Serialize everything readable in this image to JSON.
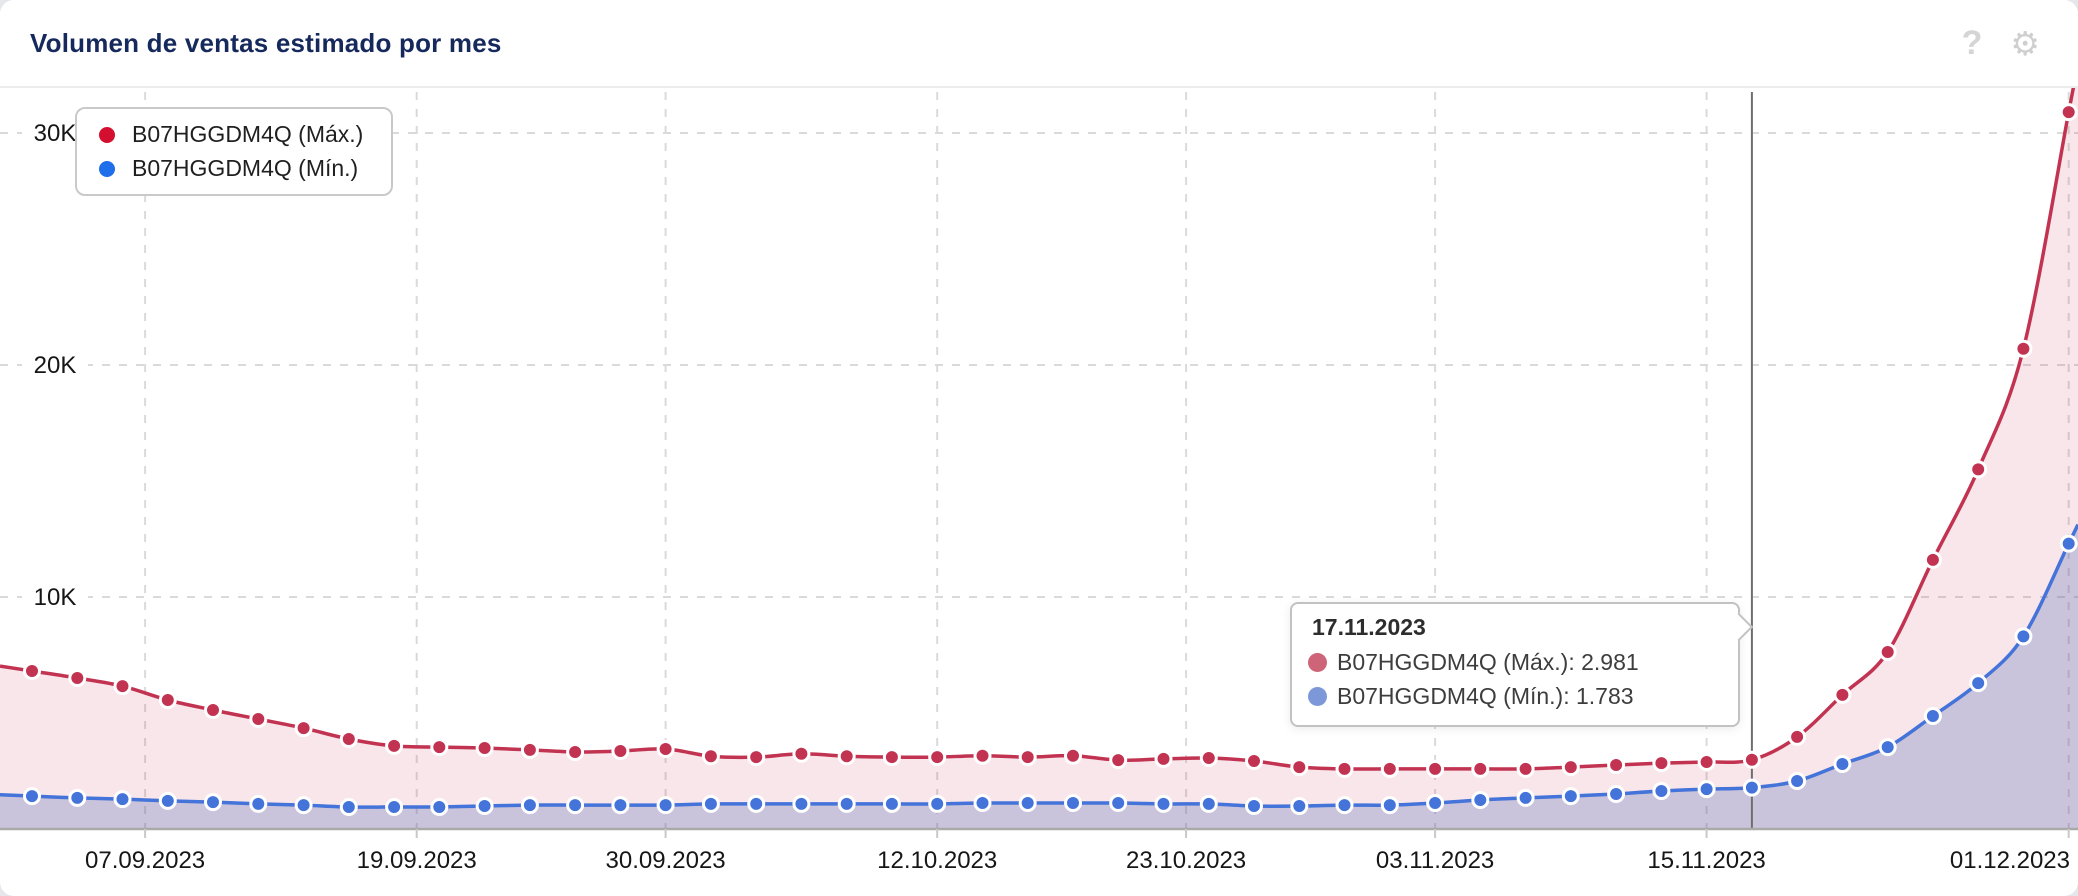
{
  "header": {
    "title": "Volumen de ventas estimado por mes",
    "help_icon": "?",
    "settings_icon": "⚙"
  },
  "legend": {
    "items": [
      {
        "label": "B07HGGDM4Q (Máx.)",
        "color": "#d40e2e"
      },
      {
        "label": "B07HGGDM4Q (Mín.)",
        "color": "#1e6fe9"
      }
    ]
  },
  "tooltip": {
    "date": "17.11.2023",
    "rows": [
      {
        "text": "B07HGGDM4Q (Máx.): 2.981",
        "color": "#cd6477"
      },
      {
        "text": "B07HGGDM4Q (Mín.): 1.783",
        "color": "#7d98d8"
      }
    ]
  },
  "colors": {
    "title": "#16295c",
    "max_line": "#c23352",
    "min_line": "#4473d9",
    "max_fill": "rgba(194,51,82,0.12)",
    "min_fill": "rgba(73,103,180,0.27)",
    "gridline": "#dadada",
    "axis_line": "#a9a9a9",
    "crosshair": "#6e6e6e",
    "axis_label": "#161616"
  },
  "chart_data": {
    "type": "line",
    "title": "Volumen de ventas estimado por mes",
    "xlabel": "",
    "ylabel": "",
    "grid": "dashed",
    "legend_position": "top-left",
    "ylim": [
      0,
      31800
    ],
    "x": [
      "02.09.2023",
      "04.09.2023",
      "06.09.2023",
      "08.09.2023",
      "10.09.2023",
      "12.09.2023",
      "14.09.2023",
      "16.09.2023",
      "18.09.2023",
      "20.09.2023",
      "22.09.2023",
      "24.09.2023",
      "26.09.2023",
      "28.09.2023",
      "30.09.2023",
      "02.10.2023",
      "04.10.2023",
      "06.10.2023",
      "08.10.2023",
      "10.10.2023",
      "12.10.2023",
      "14.10.2023",
      "16.10.2023",
      "18.10.2023",
      "20.10.2023",
      "22.10.2023",
      "24.10.2023",
      "26.10.2023",
      "28.10.2023",
      "30.10.2023",
      "01.11.2023",
      "03.11.2023",
      "05.11.2023",
      "07.11.2023",
      "09.11.2023",
      "11.11.2023",
      "13.11.2023",
      "15.11.2023",
      "17.11.2023",
      "19.11.2023",
      "21.11.2023",
      "23.11.2023",
      "25.11.2023",
      "27.11.2023",
      "29.11.2023",
      "01.12.2023"
    ],
    "series": [
      {
        "name": "B07HGGDM4Q (Máx.)",
        "color": "#c23352",
        "fill": "rgba(194,51,82,0.12)",
        "values": [
          6810,
          6510,
          6160,
          5560,
          5130,
          4740,
          4350,
          3880,
          3580,
          3530,
          3490,
          3410,
          3320,
          3360,
          3450,
          3140,
          3100,
          3240,
          3140,
          3100,
          3100,
          3160,
          3100,
          3160,
          2970,
          3020,
          3060,
          2930,
          2670,
          2590,
          2590,
          2590,
          2590,
          2590,
          2670,
          2760,
          2840,
          2890,
          2981,
          3970,
          5780,
          7630,
          11600,
          15500,
          20700,
          30900
        ]
      },
      {
        "name": "B07HGGDM4Q (Mín.)",
        "color": "#4473d9",
        "fill": "rgba(73,103,180,0.27)",
        "values": [
          1420,
          1340,
          1290,
          1210,
          1160,
          1080,
          1030,
          950,
          950,
          950,
          990,
          1030,
          1030,
          1030,
          1030,
          1080,
          1080,
          1080,
          1080,
          1080,
          1080,
          1120,
          1120,
          1120,
          1120,
          1080,
          1080,
          990,
          990,
          1030,
          1030,
          1120,
          1250,
          1340,
          1420,
          1510,
          1640,
          1720,
          1783,
          2070,
          2800,
          3530,
          4870,
          6290,
          8300,
          12300
        ]
      }
    ],
    "x_ticks": [
      "07.09.2023",
      "19.09.2023",
      "30.09.2023",
      "12.10.2023",
      "23.10.2023",
      "03.11.2023",
      "15.11.2023",
      "01.12.2023"
    ],
    "y_ticks": [
      {
        "label": "10K",
        "value": 10000
      },
      {
        "label": "20K",
        "value": 20000
      },
      {
        "label": "30K",
        "value": 30000
      }
    ],
    "crosshair_date": "17.11.2023"
  }
}
